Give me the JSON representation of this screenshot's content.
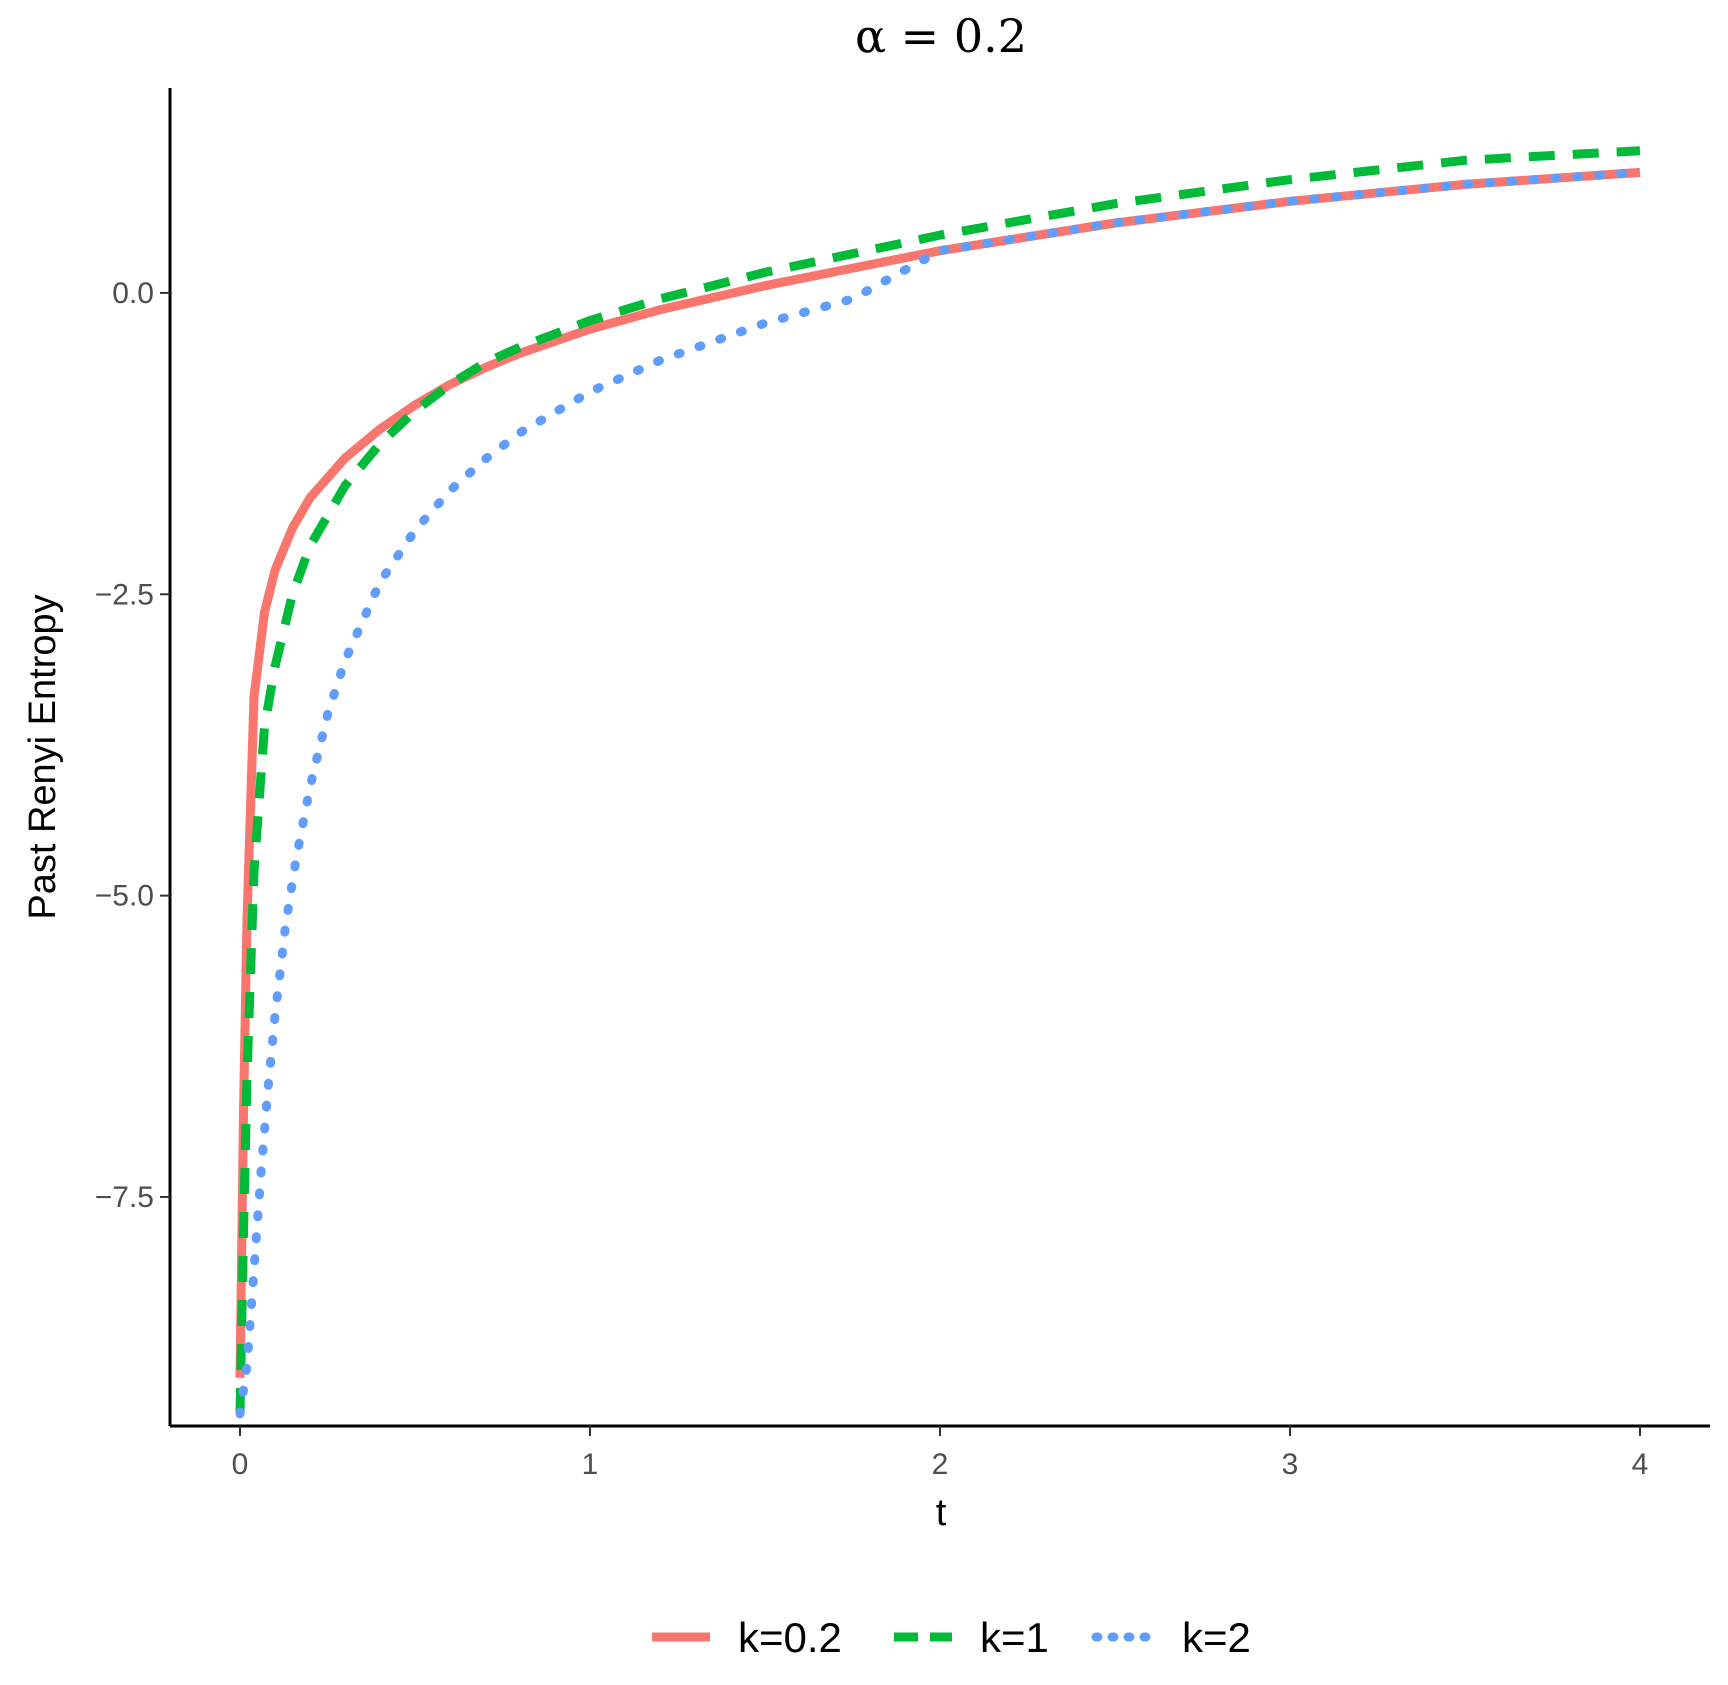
{
  "chart_data": {
    "type": "line",
    "title": "α = 0.2",
    "xlabel": "t",
    "ylabel": "Past Renyi Entropy",
    "xlim": [
      -0.2,
      4.2
    ],
    "ylim": [
      -9.4,
      1.7
    ],
    "x_ticks": [
      0,
      1,
      2,
      3,
      4
    ],
    "x_tick_labels": [
      "0",
      "1",
      "2",
      "3",
      "4"
    ],
    "y_ticks": [
      0.0,
      -2.5,
      -5.0,
      -7.5
    ],
    "y_tick_labels": [
      "0.0",
      "−2.5",
      "−5.0",
      "−7.5"
    ],
    "grid": false,
    "legend_position": "bottom",
    "series": [
      {
        "name": "k=0.2",
        "color": "#F8766D",
        "dash": "solid",
        "x": [
          0,
          0.01,
          0.02,
          0.04,
          0.07,
          0.1,
          0.15,
          0.2,
          0.3,
          0.4,
          0.5,
          0.6,
          0.7,
          0.8,
          1.0,
          1.2,
          1.5,
          2.0,
          2.5,
          3.0,
          3.5,
          4.0
        ],
        "y": [
          -9.0,
          -6.8,
          -5.2,
          -3.35,
          -2.65,
          -2.3,
          -1.95,
          -1.7,
          -1.37,
          -1.13,
          -0.93,
          -0.76,
          -0.62,
          -0.5,
          -0.3,
          -0.14,
          0.06,
          0.35,
          0.58,
          0.76,
          0.9,
          1.0
        ]
      },
      {
        "name": "k=1",
        "color": "#00BA38",
        "dash": "dashed",
        "x": [
          0,
          0.01,
          0.02,
          0.04,
          0.07,
          0.1,
          0.15,
          0.2,
          0.3,
          0.4,
          0.5,
          0.6,
          0.7,
          0.8,
          1.0,
          1.2,
          1.5,
          2.0,
          2.5,
          3.0,
          3.5,
          4.0
        ],
        "y": [
          -9.3,
          -7.8,
          -6.5,
          -4.8,
          -3.6,
          -3.1,
          -2.5,
          -2.1,
          -1.6,
          -1.25,
          -0.98,
          -0.76,
          -0.58,
          -0.45,
          -0.23,
          -0.05,
          0.17,
          0.48,
          0.74,
          0.94,
          1.1,
          1.18
        ]
      },
      {
        "name": "k=2",
        "color": "#619CFF",
        "dash": "dotted",
        "x": [
          0,
          0.02,
          0.04,
          0.06,
          0.08,
          0.1,
          0.13,
          0.16,
          0.2,
          0.25,
          0.3,
          0.4,
          0.5,
          0.6,
          0.7,
          0.8,
          1.0,
          1.2,
          1.5,
          1.75,
          2.0,
          2.5,
          3.0,
          3.5,
          4.0
        ],
        "y": [
          -9.3,
          -8.9,
          -8.1,
          -7.3,
          -6.6,
          -6.0,
          -5.25,
          -4.7,
          -4.1,
          -3.5,
          -3.05,
          -2.4,
          -1.97,
          -1.64,
          -1.38,
          -1.16,
          -0.82,
          -0.56,
          -0.25,
          -0.05,
          0.35,
          0.58,
          0.76,
          0.9,
          1.0
        ]
      }
    ]
  }
}
